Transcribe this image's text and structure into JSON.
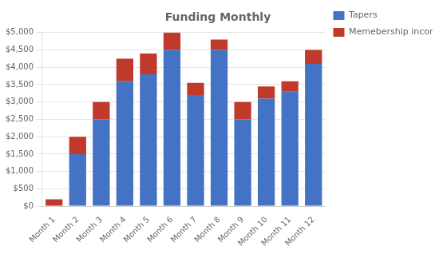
{
  "chart_data": {
    "type": "bar",
    "title": "Funding Monthly",
    "categories": [
      "Month 1",
      "Month 2",
      "Month 3",
      "Month 4",
      "Month 5",
      "Month 6",
      "Month 7",
      "Month 8",
      "Month 9",
      "Month 10",
      "Month 11",
      "Month 12"
    ],
    "series": [
      {
        "name": "Tapers",
        "color": "#4472C4",
        "values": [
          0,
          1500,
          2500,
          3600,
          3800,
          4500,
          3200,
          4500,
          2500,
          3100,
          3300,
          4100
        ]
      },
      {
        "name": "Memebership income",
        "color": "#C0392B",
        "values": [
          200,
          500,
          500,
          650,
          600,
          500,
          350,
          300,
          500,
          350,
          300,
          400
        ]
      }
    ],
    "stacked": true,
    "ylim": [
      0,
      5000
    ],
    "yticks": [
      {
        "value": 0,
        "label": "$0"
      },
      {
        "value": 500,
        "label": "$500"
      },
      {
        "value": 1000,
        "label": "$1,000"
      },
      {
        "value": 1500,
        "label": "$1,500"
      },
      {
        "value": 2000,
        "label": "$2,000"
      },
      {
        "value": 2500,
        "label": "$2,500"
      },
      {
        "value": 3000,
        "label": "$3,000"
      },
      {
        "value": 3500,
        "label": "$3,500"
      },
      {
        "value": 4000,
        "label": "$4,000"
      },
      {
        "value": 4500,
        "label": "$4,500"
      },
      {
        "value": 5000,
        "label": "$5,000"
      }
    ],
    "grid": true,
    "legend": "upper right"
  }
}
